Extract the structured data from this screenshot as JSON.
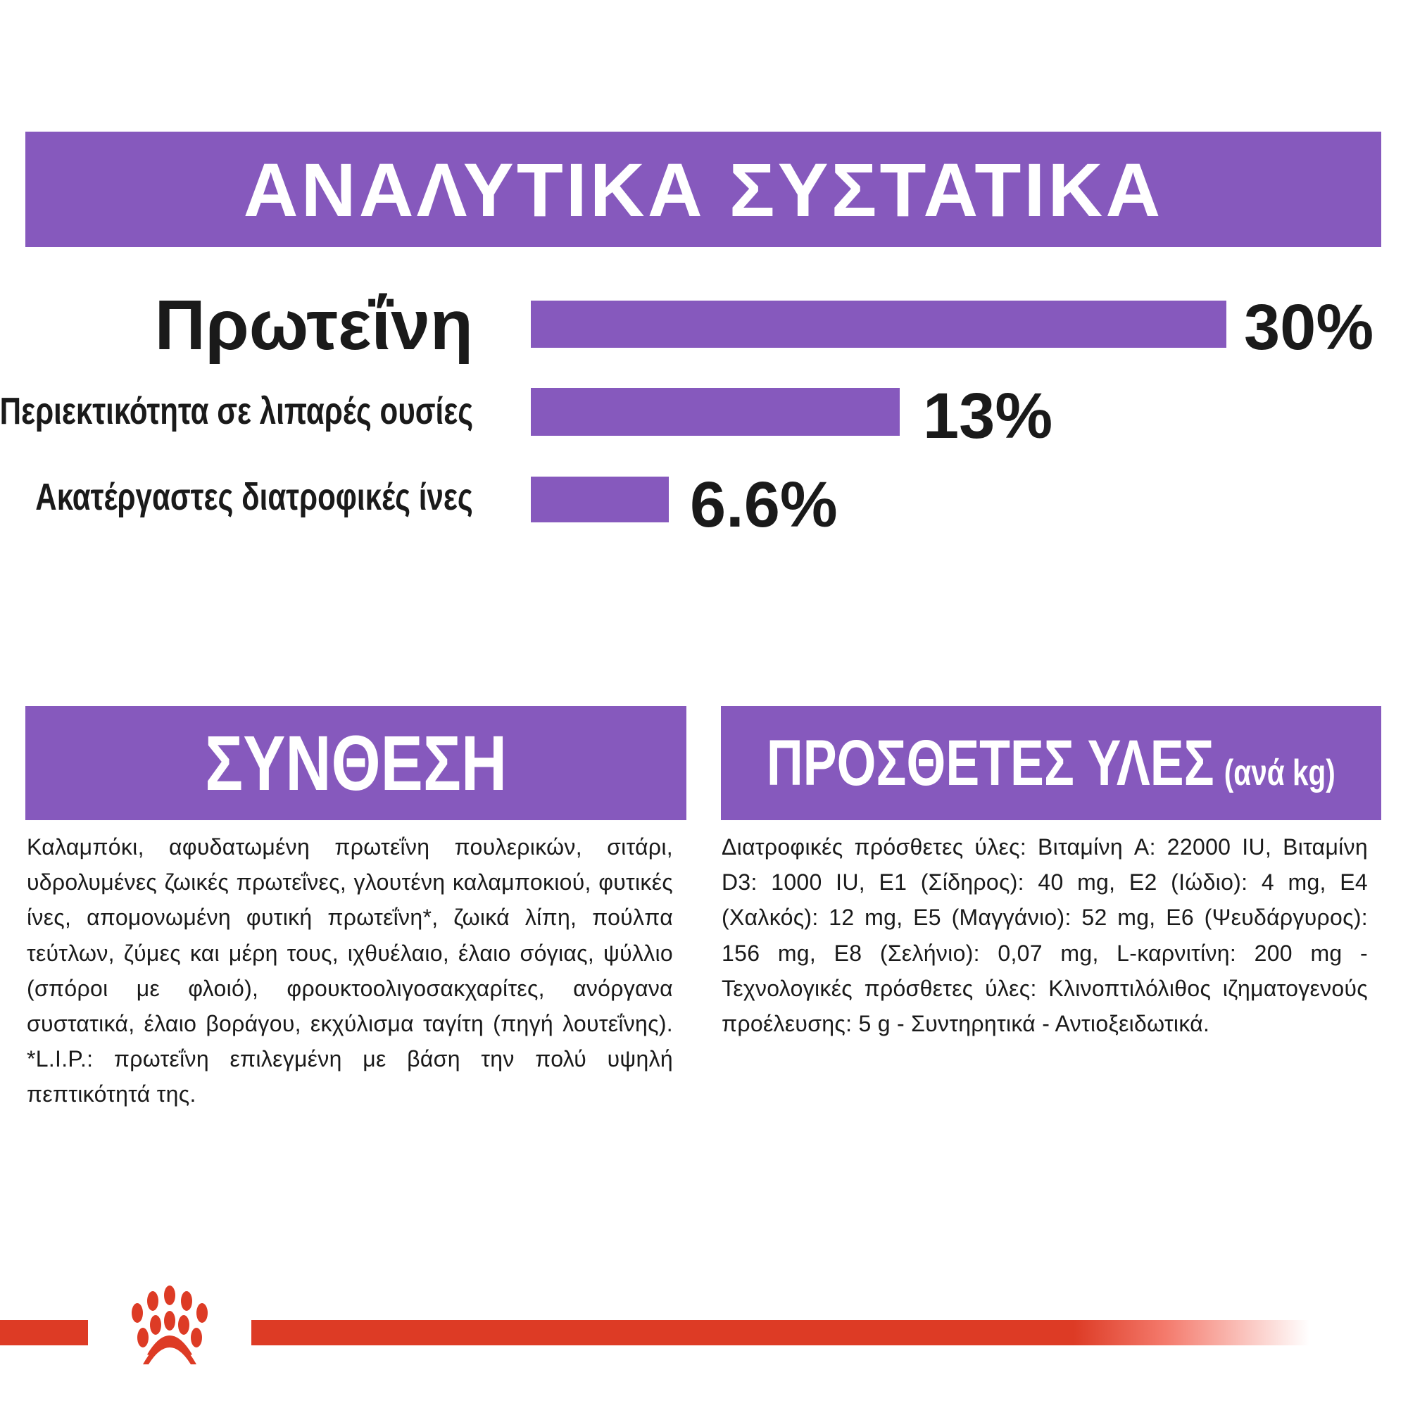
{
  "analytical": {
    "title": "ΑΝΑΛΥΤΙΚΑ ΣΥΣΤΑΤΙΚΑ",
    "rows": [
      {
        "label": "Πρωτεΐνη",
        "value": "30%"
      },
      {
        "label": "Περιεκτικότητα σε λιπαρές ουσίες",
        "value": "13%"
      },
      {
        "label": "Ακατέργαστες διατροφικές ίνες",
        "value": "6.6%"
      }
    ]
  },
  "composition": {
    "title": "ΣΥΝΘΕΣΗ",
    "text": "Καλαμπόκι, αφυδατωμένη πρωτεΐνη πουλερικών, σιτάρι, υδρολυμένες ζωικές πρωτεΐνες, γλουτένη καλαμποκιού, φυτικές ίνες, απομονωμένη φυτική πρωτεΐνη*, ζωικά λίπη, πούλπα τεύτλων, ζύμες και μέρη τους, ιχθυέλαιο, έλαιο σόγιας, ψύλλιο (σπόροι με φλοιό), φρουκτοολιγοσακχαρίτες, ανόργανα συστατικά, έλαιο βοράγου, εκχύλισμα ταγίτη (πηγή λουτεΐνης). *L.I.P.: πρωτεΐνη επιλεγμένη με βάση την πολύ υψηλή πεπτικότητά της."
  },
  "additives": {
    "title": "ΠΡΟΣΘΕΤΕΣ ΥΛΕΣ",
    "subtitle": "(ανά kg)",
    "text": "Διατροφικές πρόσθετες ύλες: Βιταμίνη A: 22000 IU, Βιταμίνη D3: 1000 IU, E1 (Σίδηρος): 40 mg, E2 (Ιώδιο): 4 mg, E4 (Χαλκός): 12 mg, E5 (Μαγγάνιο): 52 mg, E6 (Ψευδάργυρος): 156 mg, E8 (Σελήνιο): 0,07 mg, L-καρνιτίνη: 200 mg - Τεχνολογικές πρόσθετες ύλες: Κλινοπτιλόλιθος ιζηματογενούς προέλευσης: 5 g - Συντηρητικά - Αντιοξειδωτικά."
  },
  "colors": {
    "accent": "#8659bd",
    "brand_red": "#dd3b25"
  },
  "logo": {
    "icon": "royal-canin-crown-icon"
  }
}
